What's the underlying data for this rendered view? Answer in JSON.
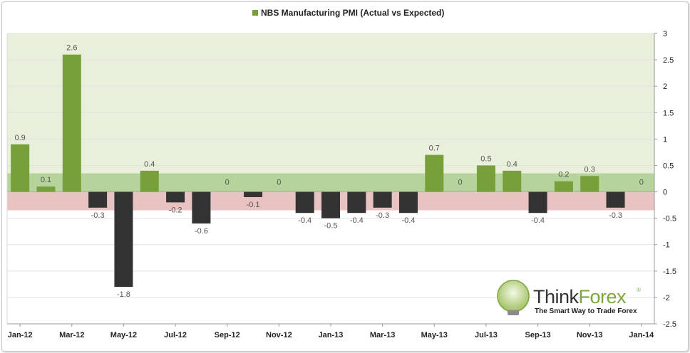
{
  "chart_data": {
    "type": "bar",
    "title": "NBS Manufacturing PMI (Actual vs Expected)",
    "legend": [
      {
        "name": "NBS Manufacturing PMI (Actual vs Expected)",
        "color": "#77a03a"
      }
    ],
    "legend_position": "top-center",
    "x_tick_labels": [
      "Jan-12",
      "Mar-12",
      "May-12",
      "Jul-12",
      "Sep-12",
      "Nov-12",
      "Jan-13",
      "Mar-13",
      "May-13",
      "Jul-13",
      "Sep-13",
      "Nov-13",
      "Jan-14"
    ],
    "y_tick_labels": [
      "3",
      "2.5",
      "2",
      "1.5",
      "1",
      "0.5",
      "0",
      "-0.5",
      "-1",
      "-1.5",
      "-2",
      "-2.5"
    ],
    "y_axis_side": "right",
    "ylim": [
      -2.5,
      3
    ],
    "grid": true,
    "positive_color": "#77a03a",
    "negative_color": "#333333",
    "categories": [
      "Jan-12",
      "Feb-12",
      "Mar-12",
      "Apr-12",
      "May-12",
      "Jun-12",
      "Jul-12",
      "Aug-12",
      "Sep-12",
      "Oct-12",
      "Nov-12",
      "Dec-12",
      "Jan-13",
      "Feb-13",
      "Mar-13",
      "Apr-13",
      "May-13",
      "Jun-13",
      "Jul-13",
      "Aug-13",
      "Sep-13",
      "Oct-13",
      "Nov-13",
      "Dec-13",
      "Jan-14"
    ],
    "values": [
      0.9,
      0.1,
      2.6,
      -0.3,
      -1.8,
      0.4,
      -0.2,
      -0.6,
      0,
      -0.1,
      0,
      -0.4,
      -0.5,
      -0.4,
      -0.3,
      -0.4,
      0.7,
      0,
      0.5,
      0.4,
      -0.4,
      0.2,
      0.3,
      -0.3,
      0
    ],
    "data_labels": [
      "0.9",
      "0.1",
      "2.6",
      "-0.3",
      "-1.8",
      "0.4",
      "-0.2",
      "-0.6",
      "0",
      "-0.1",
      "0",
      "-0.4",
      "-0.5",
      "-0.4",
      "-0.3",
      "-0.4",
      "0.7",
      "0",
      "0.5",
      "0.4",
      "-0.4",
      "0.2",
      "0.3",
      "-0.3",
      "0"
    ],
    "bands": [
      {
        "from": 0,
        "to": 3,
        "color": "#e8f0db"
      },
      {
        "from": 0,
        "to": 0.35,
        "color": "#b5d39a"
      },
      {
        "from": -0.35,
        "to": 0,
        "color": "#e9c3c1"
      }
    ]
  },
  "logo": {
    "name_part1": "Think",
    "name_part2": "Forex",
    "registered": "®",
    "tagline": "The Smart Way to Trade Forex"
  }
}
